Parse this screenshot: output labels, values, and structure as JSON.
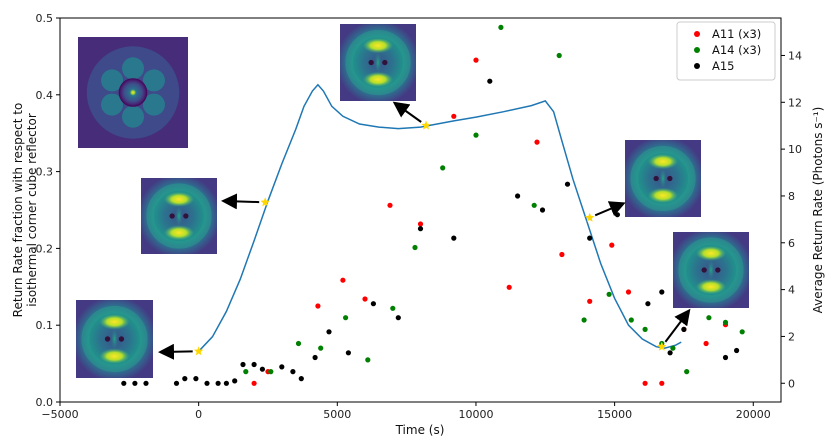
{
  "chart_data": {
    "type": "scatter",
    "xlabel": "Time (s)",
    "ylabel_left": [
      "Return Rate fraction with respect to",
      "isothermal corner cube reflector"
    ],
    "ylabel_right": "Average Return Rate (Photons s⁻¹)",
    "xlim": [
      -5000,
      21000
    ],
    "ylim_left": [
      0,
      0.5
    ],
    "ylim_right": [
      -0.8,
      15.6
    ],
    "xticks": [
      -5000,
      0,
      5000,
      10000,
      15000,
      20000
    ],
    "xtick_labels": [
      "−5000",
      "0",
      "5000",
      "10000",
      "15000",
      "20000"
    ],
    "yticks_left": [
      0.0,
      0.1,
      0.2,
      0.3,
      0.4,
      0.5
    ],
    "ytick_labels_left": [
      "0.0",
      "0.1",
      "0.2",
      "0.3",
      "0.4",
      "0.5"
    ],
    "yticks_right": [
      0,
      2,
      4,
      6,
      8,
      10,
      12,
      14
    ],
    "ytick_labels_right": [
      "0",
      "2",
      "4",
      "6",
      "8",
      "10",
      "12",
      "14"
    ],
    "legend_position": "top-right",
    "curve": {
      "axis": "left",
      "color": "#1f77b4",
      "points": [
        [
          0,
          0.066
        ],
        [
          500,
          0.085
        ],
        [
          1000,
          0.118
        ],
        [
          1500,
          0.16
        ],
        [
          2000,
          0.21
        ],
        [
          2500,
          0.262
        ],
        [
          3000,
          0.31
        ],
        [
          3500,
          0.355
        ],
        [
          3800,
          0.385
        ],
        [
          4100,
          0.405
        ],
        [
          4300,
          0.413
        ],
        [
          4500,
          0.405
        ],
        [
          4800,
          0.385
        ],
        [
          5200,
          0.372
        ],
        [
          5800,
          0.362
        ],
        [
          6500,
          0.358
        ],
        [
          7200,
          0.356
        ],
        [
          8000,
          0.358
        ],
        [
          8600,
          0.362
        ],
        [
          9200,
          0.366
        ],
        [
          10000,
          0.371
        ],
        [
          11000,
          0.378
        ],
        [
          12000,
          0.386
        ],
        [
          12500,
          0.392
        ],
        [
          12800,
          0.378
        ],
        [
          13100,
          0.34
        ],
        [
          13500,
          0.29
        ],
        [
          14000,
          0.235
        ],
        [
          14500,
          0.18
        ],
        [
          15000,
          0.135
        ],
        [
          15500,
          0.1
        ],
        [
          16000,
          0.082
        ],
        [
          16500,
          0.072
        ],
        [
          16800,
          0.07
        ],
        [
          17200,
          0.074
        ],
        [
          17400,
          0.078
        ]
      ]
    },
    "series": [
      {
        "name": "A11 (x3)",
        "color": "#ff0000",
        "axis": "right",
        "points": [
          [
            2000,
            0
          ],
          [
            2500,
            0.5
          ],
          [
            4300,
            3.3
          ],
          [
            5200,
            4.4
          ],
          [
            6000,
            3.6
          ],
          [
            6900,
            7.6
          ],
          [
            8000,
            6.8
          ],
          [
            9200,
            11.4
          ],
          [
            10000,
            13.8
          ],
          [
            11200,
            4.1
          ],
          [
            12200,
            10.3
          ],
          [
            13100,
            5.5
          ],
          [
            14100,
            3.5
          ],
          [
            14900,
            5.9
          ],
          [
            15500,
            3.9
          ],
          [
            16100,
            0
          ],
          [
            16700,
            0
          ],
          [
            17500,
            2.3
          ],
          [
            18300,
            1.7
          ],
          [
            19000,
            2.5
          ]
        ]
      },
      {
        "name": "A14 (x3)",
        "color": "#008000",
        "axis": "right",
        "points": [
          [
            1700,
            0.5
          ],
          [
            2600,
            0.5
          ],
          [
            3600,
            1.7
          ],
          [
            4400,
            1.5
          ],
          [
            5300,
            2.8
          ],
          [
            6100,
            1.0
          ],
          [
            7000,
            3.2
          ],
          [
            7800,
            5.8
          ],
          [
            8800,
            9.2
          ],
          [
            10000,
            10.6
          ],
          [
            10900,
            15.2
          ],
          [
            12100,
            7.6
          ],
          [
            13000,
            14.0
          ],
          [
            13900,
            2.7
          ],
          [
            14800,
            3.8
          ],
          [
            15600,
            2.7
          ],
          [
            16100,
            2.3
          ],
          [
            16700,
            1.7
          ],
          [
            17100,
            1.5
          ],
          [
            17600,
            0.5
          ],
          [
            18400,
            2.8
          ],
          [
            19000,
            2.6
          ],
          [
            19600,
            2.2
          ]
        ]
      },
      {
        "name": "A15",
        "color": "#000000",
        "axis": "right",
        "points": [
          [
            -2700,
            0
          ],
          [
            -2300,
            0
          ],
          [
            -1900,
            0
          ],
          [
            -800,
            0
          ],
          [
            -500,
            0.2
          ],
          [
            -100,
            0.2
          ],
          [
            300,
            0
          ],
          [
            700,
            0
          ],
          [
            1000,
            0
          ],
          [
            1300,
            0.1
          ],
          [
            1600,
            0.8
          ],
          [
            2000,
            0.8
          ],
          [
            2300,
            0.6
          ],
          [
            3000,
            0.7
          ],
          [
            3400,
            0.5
          ],
          [
            3700,
            0.2
          ],
          [
            4200,
            1.1
          ],
          [
            4700,
            2.2
          ],
          [
            5400,
            1.3
          ],
          [
            6300,
            3.4
          ],
          [
            7200,
            2.8
          ],
          [
            8000,
            6.6
          ],
          [
            9200,
            6.2
          ],
          [
            10500,
            12.9
          ],
          [
            11500,
            8.0
          ],
          [
            12400,
            7.4
          ],
          [
            13300,
            8.5
          ],
          [
            14100,
            6.2
          ],
          [
            15100,
            7.2
          ],
          [
            16200,
            3.4
          ],
          [
            16700,
            3.9
          ],
          [
            17000,
            1.3
          ],
          [
            17500,
            2.3
          ],
          [
            19000,
            1.1
          ],
          [
            19400,
            1.4
          ]
        ]
      }
    ],
    "markers": {
      "color": "#ffd700",
      "points": [
        [
          0,
          0.066
        ],
        [
          2400,
          0.26
        ],
        [
          8200,
          0.36
        ],
        [
          14100,
          0.24
        ],
        [
          16700,
          0.072
        ]
      ]
    },
    "inset_images": [
      {
        "name": "inset-image-top-left",
        "pattern": "ring-dots"
      },
      {
        "name": "inset-image-t2400",
        "pattern": "bars"
      },
      {
        "name": "inset-image-t0",
        "pattern": "bars"
      },
      {
        "name": "inset-image-t8200",
        "pattern": "bars"
      },
      {
        "name": "inset-image-t14100",
        "pattern": "bars"
      },
      {
        "name": "inset-image-t16700",
        "pattern": "bars"
      }
    ]
  }
}
